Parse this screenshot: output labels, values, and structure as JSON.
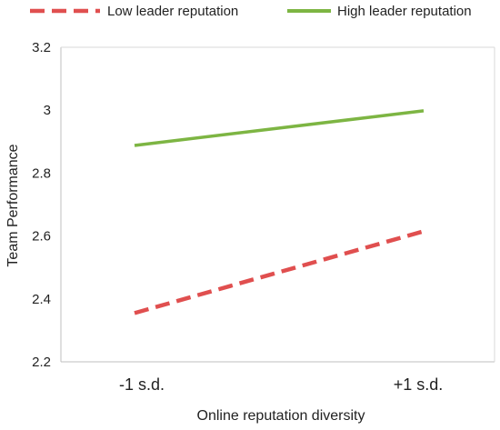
{
  "chart_data": {
    "type": "line",
    "title": "",
    "xlabel": "Online reputation diversity",
    "ylabel": "Team Performance",
    "categories": [
      "-1 s.d.",
      "+1 s.d."
    ],
    "ylim": [
      2.2,
      3.2
    ],
    "yticks": [
      2.2,
      2.4,
      2.6,
      2.8,
      3,
      3.2
    ],
    "ytick_labels": [
      "2.2",
      "2.4",
      "2.6",
      "2.8",
      "3",
      "3.2"
    ],
    "grid": false,
    "legend_position": "top",
    "series": [
      {
        "name": "Low leader reputation",
        "values": [
          2.355,
          2.615
        ],
        "color": "#E04F4F",
        "line_style": "dashed"
      },
      {
        "name": "High leader reputation",
        "values": [
          2.888,
          2.998
        ],
        "color": "#7DB543",
        "line_style": "solid"
      }
    ]
  }
}
